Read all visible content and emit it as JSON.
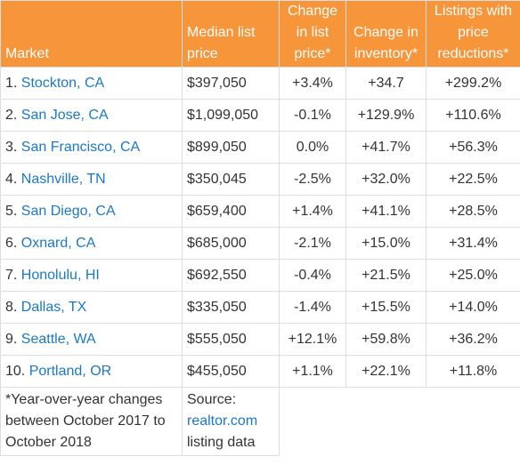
{
  "header": {
    "market": "Market",
    "median_price": "Median list price",
    "change_price": "Change in list price*",
    "change_inventory": "Change in inventory*",
    "price_reductions": "Listings with price reductions*"
  },
  "rows": [
    {
      "rank": "1.",
      "market": "Stockton, CA",
      "price": "$397,050",
      "chg_price": "+3.4%",
      "chg_inv": "+34.7",
      "reductions": "+299.2%"
    },
    {
      "rank": "2.",
      "market": "San Jose, CA",
      "price": "$1,099,050",
      "chg_price": "-0.1%",
      "chg_inv": "+129.9%",
      "reductions": "+110.6%"
    },
    {
      "rank": "3.",
      "market": "San Francisco, CA",
      "price": "$899,050",
      "chg_price": "0.0%",
      "chg_inv": "+41.7%",
      "reductions": "+56.3%"
    },
    {
      "rank": "4.",
      "market": "Nashville, TN",
      "price": "$350,045",
      "chg_price": "-2.5%",
      "chg_inv": "+32.0%",
      "reductions": "+22.5%"
    },
    {
      "rank": "5.",
      "market": "San Diego, CA",
      "price": "$659,400",
      "chg_price": "+1.4%",
      "chg_inv": "+41.1%",
      "reductions": "+28.5%"
    },
    {
      "rank": "6.",
      "market": "Oxnard, CA",
      "price": "$685,000",
      "chg_price": "-2.1%",
      "chg_inv": "+15.0%",
      "reductions": "+31.4%"
    },
    {
      "rank": "7.",
      "market": "Honolulu, HI",
      "price": "$692,550",
      "chg_price": "-0.4%",
      "chg_inv": "+21.5%",
      "reductions": "+25.0%"
    },
    {
      "rank": "8.",
      "market": "Dallas, TX",
      "price": "$335,050",
      "chg_price": "-1.4%",
      "chg_inv": "+15.5%",
      "reductions": "+14.0%"
    },
    {
      "rank": "9.",
      "market": "Seattle, WA",
      "price": "$555,050",
      "chg_price": "+12.1%",
      "chg_inv": "+59.8%",
      "reductions": "+36.2%"
    },
    {
      "rank": "10.",
      "market": "Portland, OR",
      "price": "$455,050",
      "chg_price": "+1.1%",
      "chg_inv": "+22.1%",
      "reductions": "+11.8%"
    }
  ],
  "footer": {
    "note": "*Year-over-year changes between October 2017 to October 2018",
    "source_prefix": "Source:",
    "source_link": "realtor.com",
    "source_suffix": "listing data"
  },
  "colors": {
    "header_bg": "#f7953a",
    "header_text": "#ffffff",
    "link": "#1b78c7",
    "border": "#dddddd"
  }
}
